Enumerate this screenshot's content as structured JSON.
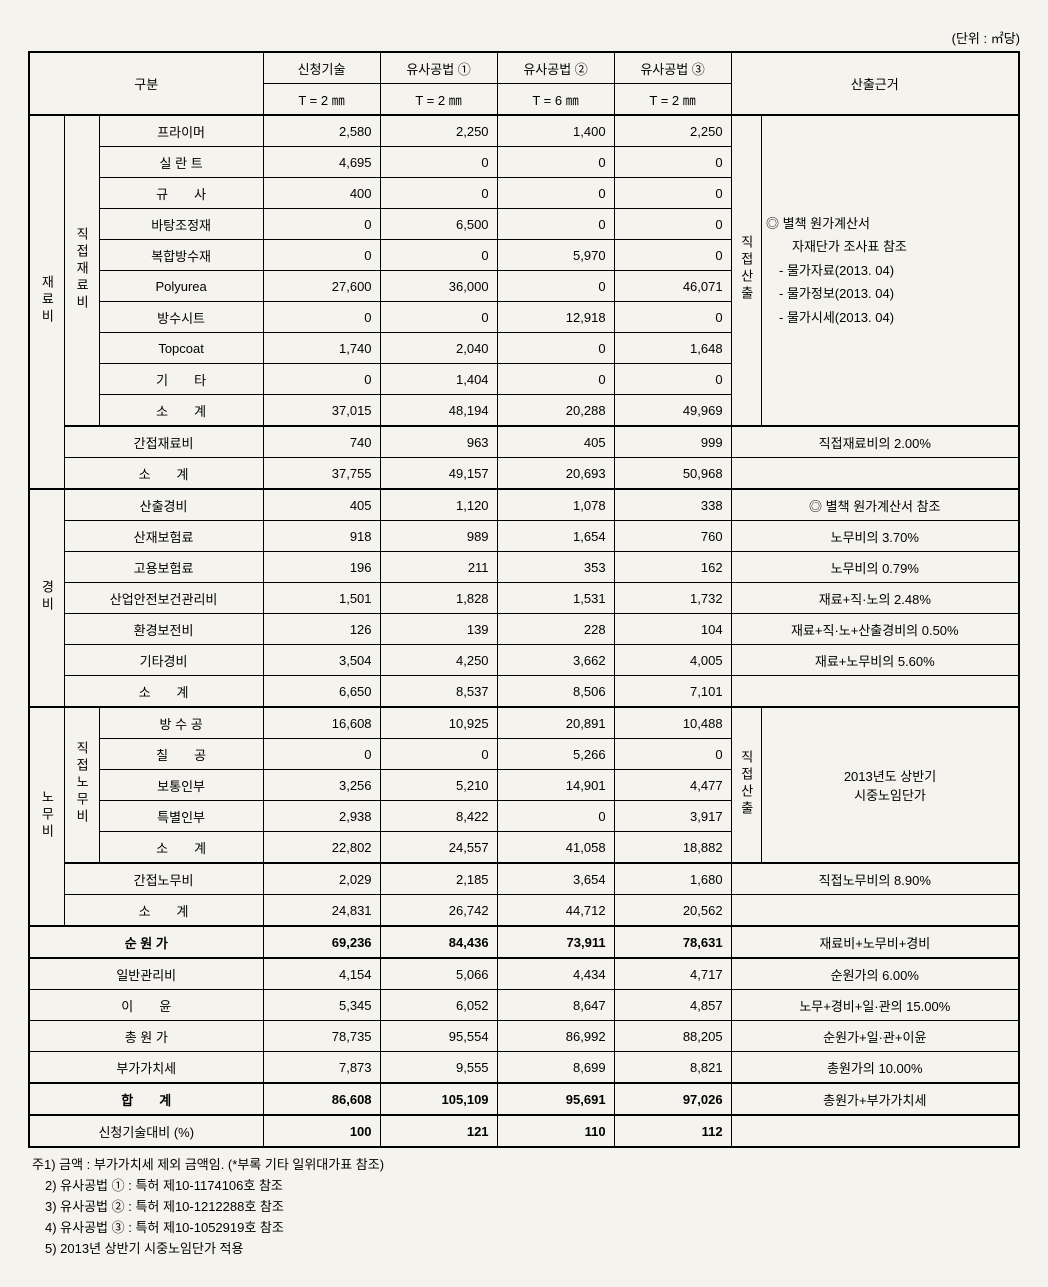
{
  "unit_label": "(단위 : ㎡당)",
  "header": {
    "gubun": "구분",
    "cols": [
      "신청기술",
      "유사공법 ①",
      "유사공법 ②",
      "유사공법 ③"
    ],
    "thickness": [
      "T = 2 ㎜",
      "T = 2 ㎜",
      "T = 6 ㎜",
      "T = 2 ㎜"
    ],
    "basis": "산출근거"
  },
  "cat": {
    "materials": "재료비",
    "direct_mat": "직접재료비",
    "expenses": "경비",
    "labor": "노무비",
    "direct_labor": "직접노무비",
    "direct_calc": "직접산출"
  },
  "rows": {
    "primer": {
      "label": "프라이머",
      "v": [
        "2,580",
        "2,250",
        "1,400",
        "2,250"
      ]
    },
    "sealant": {
      "label": "실 란 트",
      "v": [
        "4,695",
        "0",
        "0",
        "0"
      ]
    },
    "silica": {
      "label": "규　　사",
      "v": [
        "400",
        "0",
        "0",
        "0"
      ]
    },
    "base_adj": {
      "label": "바탕조정재",
      "v": [
        "0",
        "6,500",
        "0",
        "0"
      ]
    },
    "compound": {
      "label": "복합방수재",
      "v": [
        "0",
        "0",
        "5,970",
        "0"
      ]
    },
    "polyurea": {
      "label": "Polyurea",
      "v": [
        "27,600",
        "36,000",
        "0",
        "46,071"
      ]
    },
    "sheet": {
      "label": "방수시트",
      "v": [
        "0",
        "0",
        "12,918",
        "0"
      ]
    },
    "topcoat": {
      "label": "Topcoat",
      "v": [
        "1,740",
        "2,040",
        "0",
        "1,648"
      ]
    },
    "etc": {
      "label": "기　　타",
      "v": [
        "0",
        "1,404",
        "0",
        "0"
      ]
    },
    "mat_sub": {
      "label": "소　　계",
      "v": [
        "37,015",
        "48,194",
        "20,288",
        "49,969"
      ]
    },
    "indirect_mat": {
      "label": "간접재료비",
      "v": [
        "740",
        "963",
        "405",
        "999"
      ]
    },
    "mat_total": {
      "label": "소　　계",
      "v": [
        "37,755",
        "49,157",
        "20,693",
        "50,968"
      ]
    },
    "calc_exp": {
      "label": "산출경비",
      "v": [
        "405",
        "1,120",
        "1,078",
        "338"
      ]
    },
    "ind_ins": {
      "label": "산재보험료",
      "v": [
        "918",
        "989",
        "1,654",
        "760"
      ]
    },
    "emp_ins": {
      "label": "고용보험료",
      "v": [
        "196",
        "211",
        "353",
        "162"
      ]
    },
    "safety": {
      "label": "산업안전보건관리비",
      "v": [
        "1,501",
        "1,828",
        "1,531",
        "1,732"
      ]
    },
    "env": {
      "label": "환경보전비",
      "v": [
        "126",
        "139",
        "228",
        "104"
      ]
    },
    "other_exp": {
      "label": "기타경비",
      "v": [
        "3,504",
        "4,250",
        "3,662",
        "4,005"
      ]
    },
    "exp_total": {
      "label": "소　　계",
      "v": [
        "6,650",
        "8,537",
        "8,506",
        "7,101"
      ]
    },
    "waterproofer": {
      "label": "방 수 공",
      "v": [
        "16,608",
        "10,925",
        "20,891",
        "10,488"
      ]
    },
    "painter": {
      "label": "칠　　공",
      "v": [
        "0",
        "0",
        "5,266",
        "0"
      ]
    },
    "common": {
      "label": "보통인부",
      "v": [
        "3,256",
        "5,210",
        "14,901",
        "4,477"
      ]
    },
    "special": {
      "label": "특별인부",
      "v": [
        "2,938",
        "8,422",
        "0",
        "3,917"
      ]
    },
    "labor_sub": {
      "label": "소　　계",
      "v": [
        "22,802",
        "24,557",
        "41,058",
        "18,882"
      ]
    },
    "indirect_lab": {
      "label": "간접노무비",
      "v": [
        "2,029",
        "2,185",
        "3,654",
        "1,680"
      ]
    },
    "labor_total": {
      "label": "소　　계",
      "v": [
        "24,831",
        "26,742",
        "44,712",
        "20,562"
      ]
    },
    "net_cost": {
      "label": "순 원 가",
      "v": [
        "69,236",
        "84,436",
        "73,911",
        "78,631"
      ]
    },
    "gen_mgmt": {
      "label": "일반관리비",
      "v": [
        "4,154",
        "5,066",
        "4,434",
        "4,717"
      ]
    },
    "profit": {
      "label": "이　　윤",
      "v": [
        "5,345",
        "6,052",
        "8,647",
        "4,857"
      ]
    },
    "total_cost": {
      "label": "총 원 가",
      "v": [
        "78,735",
        "95,554",
        "86,992",
        "88,205"
      ]
    },
    "vat": {
      "label": "부가가치세",
      "v": [
        "7,873",
        "9,555",
        "8,699",
        "8,821"
      ]
    },
    "grand_total": {
      "label": "합　　계",
      "v": [
        "86,608",
        "105,109",
        "95,691",
        "97,026"
      ]
    },
    "ratio": {
      "label": "신청기술대비 (%)",
      "v": [
        "100",
        "121",
        "110",
        "112"
      ]
    }
  },
  "basis": {
    "mat_block_1": "◎ 별책 원가계산서",
    "mat_block_2": "　　자재단가 조사표 참조",
    "mat_block_3": "　- 물가자료(2013. 04)",
    "mat_block_4": "　- 물가정보(2013. 04)",
    "mat_block_5": "　- 물가시세(2013. 04)",
    "indirect_mat": "직접재료비의 2.00%",
    "calc_exp": "◎ 별책 원가계산서 참조",
    "ind_ins": "노무비의 3.70%",
    "emp_ins": "노무비의 0.79%",
    "safety": "재료+직·노의 2.48%",
    "env": "재료+직·노+산출경비의 0.50%",
    "other_exp": "재료+노무비의 5.60%",
    "labor_block_1": "2013년도 상반기",
    "labor_block_2": "시중노임단가",
    "indirect_lab": "직접노무비의 8.90%",
    "net_cost": "재료비+노무비+경비",
    "gen_mgmt": "순원가의 6.00%",
    "profit": "노무+경비+일·관의 15.00%",
    "total_cost": "순원가+일·관+이윤",
    "vat": "총원가의 10.00%",
    "grand_total": "총원가+부가가치세"
  },
  "notes": {
    "n1": "주1) 금액 : 부가가치세 제외 금액임. (*부록 기타 일위대가표 참조)",
    "n2": "　2) 유사공법 ① : 특허 제10-1174106호 참조",
    "n3": "　3) 유사공법 ② : 특허 제10-1212288호 참조",
    "n4": "　4) 유사공법 ③ : 특허 제10-1052919호 참조",
    "n5": "　5) 2013년 상반기 시중노임단가 적용"
  }
}
